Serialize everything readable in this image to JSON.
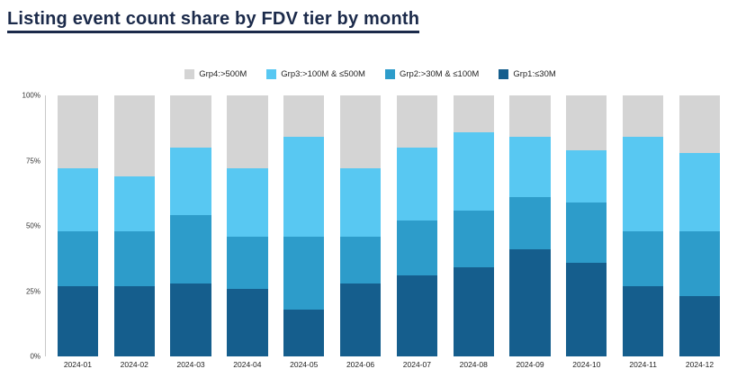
{
  "page_title": "Listing event count share by FDV tier by month",
  "chart_data": {
    "type": "bar",
    "stacked": true,
    "title": "Listing event count share by FDV tier by month",
    "categories": [
      "2024-01",
      "2024-02",
      "2024-03",
      "2024-04",
      "2024-05",
      "2024-06",
      "2024-07",
      "2024-08",
      "2024-09",
      "2024-10",
      "2024-11",
      "2024-12"
    ],
    "series": [
      {
        "name": "Grp1:≤30M",
        "color": "#155e8d",
        "values": [
          27,
          27,
          28,
          26,
          18,
          28,
          31,
          34,
          41,
          36,
          27,
          23
        ]
      },
      {
        "name": "Grp2:>30M & ≤100M",
        "color": "#2d9cca",
        "values": [
          21,
          21,
          26,
          20,
          28,
          18,
          21,
          22,
          20,
          23,
          21,
          25
        ]
      },
      {
        "name": "Grp3:>100M & ≤500M",
        "color": "#58c8f2",
        "values": [
          24,
          21,
          26,
          26,
          38,
          26,
          28,
          30,
          23,
          20,
          36,
          30
        ]
      },
      {
        "name": "Grp4:>500M",
        "color": "#d4d4d4",
        "values": [
          28,
          31,
          20,
          28,
          16,
          28,
          20,
          14,
          16,
          21,
          16,
          22
        ]
      }
    ],
    "legend": [
      {
        "label": "Grp4:>500M",
        "color": "#d4d4d4"
      },
      {
        "label": "Grp3:>100M & ≤500M",
        "color": "#58c8f2"
      },
      {
        "label": "Grp2:>30M & ≤100M",
        "color": "#2d9cca"
      },
      {
        "label": "Grp1:≤30M",
        "color": "#155e8d"
      }
    ],
    "yticks": [
      {
        "label": "100%",
        "value": 100
      },
      {
        "label": "75%",
        "value": 75
      },
      {
        "label": "50%",
        "value": 50
      },
      {
        "label": "25%",
        "value": 25
      },
      {
        "label": "0%",
        "value": 0
      }
    ],
    "ylim": [
      0,
      100
    ],
    "legend_position": "top",
    "grid": false
  }
}
